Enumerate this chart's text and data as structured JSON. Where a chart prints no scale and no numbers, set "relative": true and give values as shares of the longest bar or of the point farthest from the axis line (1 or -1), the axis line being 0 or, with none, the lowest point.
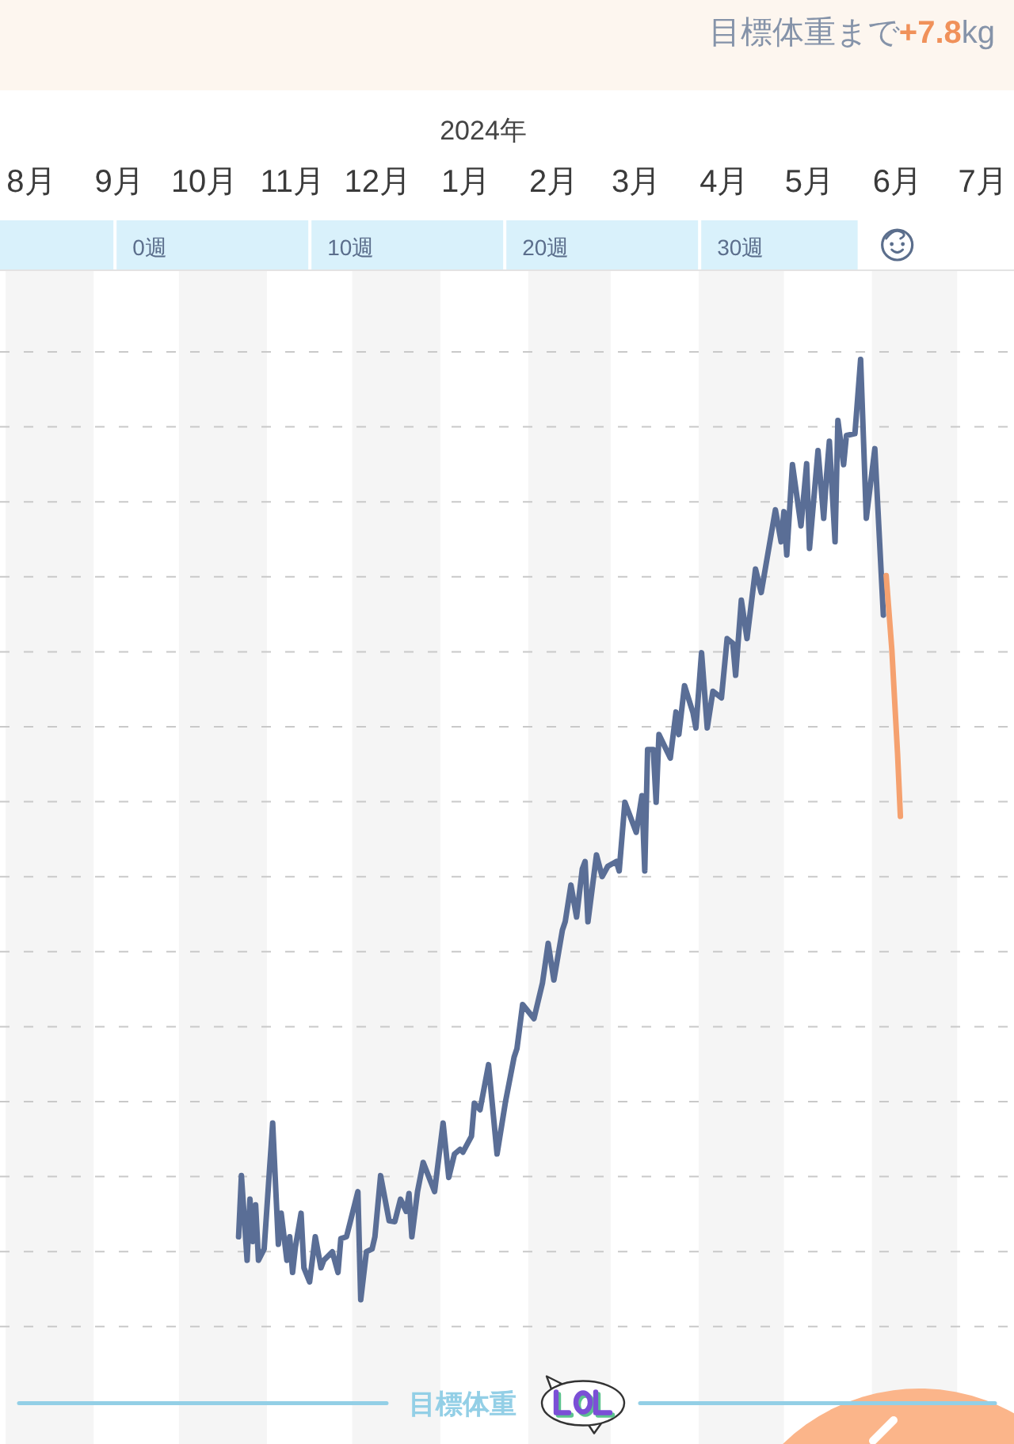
{
  "chart_data": {
    "type": "line",
    "title": "目標体重まで**+7.8**kg",
    "xlabel": "2024年",
    "relative": true,
    "xlim": [
      "2023-07-30",
      "2024-07-21"
    ],
    "xticks": [
      {
        "value": "2023-08-10",
        "label": "8月"
      },
      {
        "value": "2023-09-10",
        "label": "9月"
      },
      {
        "value": "2023-10-10",
        "label": "10月"
      },
      {
        "value": "2023-11-10",
        "label": "11月"
      },
      {
        "value": "2023-12-10",
        "label": "12月"
      },
      {
        "value": "2024-01-10",
        "label": "1月"
      },
      {
        "value": "2024-02-10",
        "label": "2月"
      },
      {
        "value": "2024-03-10",
        "label": "3月"
      },
      {
        "value": "2024-04-10",
        "label": "4月"
      },
      {
        "value": "2024-05-10",
        "label": "5月"
      },
      {
        "value": "2024-06-10",
        "label": "6月"
      },
      {
        "value": "2024-07-10",
        "label": "7月"
      }
    ],
    "grid": "y",
    "bands": [
      {
        "axis": "x",
        "from": "2023-08-01",
        "to": "2023-09-01",
        "color": "#f5f5f5"
      },
      {
        "axis": "x",
        "from": "2023-10-01",
        "to": "2023-11-01",
        "color": "#f5f5f5"
      },
      {
        "axis": "x",
        "from": "2023-12-01",
        "to": "2024-01-01",
        "color": "#f5f5f5"
      },
      {
        "axis": "x",
        "from": "2024-02-01",
        "to": "2024-03-01",
        "color": "#f5f5f5"
      },
      {
        "axis": "x",
        "from": "2024-04-01",
        "to": "2024-05-01",
        "color": "#f5f5f5"
      },
      {
        "axis": "x",
        "from": "2024-06-01",
        "to": "2024-07-01",
        "color": "#f5f5f5"
      }
    ],
    "annotations": [
      "0週",
      "10週",
      "20週",
      "30週"
    ],
    "series": [
      {
        "color": "#5a6e96",
        "x": [
          "2023-10-22",
          "2023-10-23",
          "2023-10-25",
          "2023-10-26",
          "2023-10-27",
          "2023-10-28",
          "2023-10-29",
          "2023-10-31",
          "2023-11-03",
          "2023-11-05",
          "2023-11-06",
          "2023-11-08",
          "2023-11-09",
          "2023-11-10",
          "2023-11-11",
          "2023-11-13",
          "2023-11-14",
          "2023-11-16",
          "2023-11-18",
          "2023-11-20",
          "2023-11-21",
          "2023-11-24",
          "2023-11-26",
          "2023-11-27",
          "2023-11-29",
          "2023-12-03",
          "2023-12-04",
          "2023-12-06",
          "2023-12-08",
          "2023-12-09",
          "2023-12-11",
          "2023-12-14",
          "2023-12-16",
          "2023-12-18",
          "2023-12-20",
          "2023-12-21",
          "2023-12-22",
          "2023-12-24",
          "2023-12-26",
          "2023-12-30",
          "2024-01-02",
          "2024-01-04",
          "2024-01-06",
          "2024-01-08",
          "2024-01-09",
          "2024-01-12",
          "2024-01-13",
          "2024-01-15",
          "2024-01-18",
          "2024-01-21",
          "2024-01-24",
          "2024-01-27",
          "2024-01-28",
          "2024-01-30",
          "2024-02-03",
          "2024-02-06",
          "2024-02-08",
          "2024-02-10",
          "2024-02-13",
          "2024-02-14",
          "2024-02-16",
          "2024-02-18",
          "2024-02-20",
          "2024-02-21",
          "2024-02-22",
          "2024-02-25",
          "2024-02-27",
          "2024-02-29",
          "2024-03-03",
          "2024-03-04",
          "2024-03-06",
          "2024-03-10",
          "2024-03-12",
          "2024-03-13",
          "2024-03-14",
          "2024-03-16",
          "2024-03-17",
          "2024-03-18",
          "2024-03-22",
          "2024-03-24",
          "2024-03-25",
          "2024-03-27",
          "2024-03-30",
          "2024-03-31",
          "2024-04-02",
          "2024-04-04",
          "2024-04-06",
          "2024-04-09",
          "2024-04-11",
          "2024-04-13",
          "2024-04-14",
          "2024-04-16",
          "2024-04-18",
          "2024-04-21",
          "2024-04-23",
          "2024-04-28",
          "2024-04-30",
          "2024-05-01",
          "2024-05-02",
          "2024-05-04",
          "2024-05-07",
          "2024-05-09",
          "2024-05-10",
          "2024-05-13",
          "2024-05-15",
          "2024-05-16",
          "2024-05-17",
          "2024-05-19",
          "2024-05-20",
          "2024-05-22",
          "2024-05-23",
          "2024-05-26",
          "2024-05-28",
          "2024-05-30",
          "2024-06-02",
          "2024-06-05"
        ],
        "values": [
          0.067,
          0.132,
          0.042,
          0.107,
          0.062,
          0.101,
          0.042,
          0.054,
          0.188,
          0.059,
          0.092,
          0.042,
          0.067,
          0.029,
          0.056,
          0.092,
          0.034,
          0.019,
          0.067,
          0.034,
          0.042,
          0.051,
          0.029,
          0.065,
          0.067,
          0.115,
          0,
          0.051,
          0.054,
          0.067,
          0.132,
          0.084,
          0.083,
          0.107,
          0.094,
          0.113,
          0.067,
          0.115,
          0.146,
          0.115,
          0.188,
          0.13,
          0.155,
          0.16,
          0.157,
          0.174,
          0.209,
          0.202,
          0.25,
          0.155,
          0.211,
          0.258,
          0.267,
          0.314,
          0.299,
          0.337,
          0.379,
          0.34,
          0.393,
          0.402,
          0.441,
          0.407,
          0.458,
          0.466,
          0.402,
          0.473,
          0.45,
          0.461,
          0.466,
          0.456,
          0.529,
          0.497,
          0.536,
          0.456,
          0.585,
          0.585,
          0.529,
          0.601,
          0.576,
          0.625,
          0.601,
          0.653,
          0.624,
          0.608,
          0.688,
          0.608,
          0.647,
          0.64,
          0.703,
          0.698,
          0.664,
          0.744,
          0.703,
          0.777,
          0.752,
          0.84,
          0.806,
          0.838,
          0.792,
          0.888,
          0.823,
          0.889,
          0.799,
          0.903,
          0.831,
          0.876,
          0.913,
          0.806,
          0.935,
          0.888,
          0.919,
          0.921,
          1,
          0.831,
          0.905,
          0.728
        ]
      },
      {
        "color": "#f5a16f",
        "x": [
          "2024-06-06",
          "2024-06-08",
          "2024-06-10",
          "2024-06-11"
        ],
        "values": [
          0.77,
          0.691,
          0.581,
          0.514
        ]
      }
    ],
    "ref_lines": [
      {
        "axis": "y",
        "value": -0.11,
        "label": "目標体重",
        "color": "#93cfe6"
      }
    ]
  }
}
